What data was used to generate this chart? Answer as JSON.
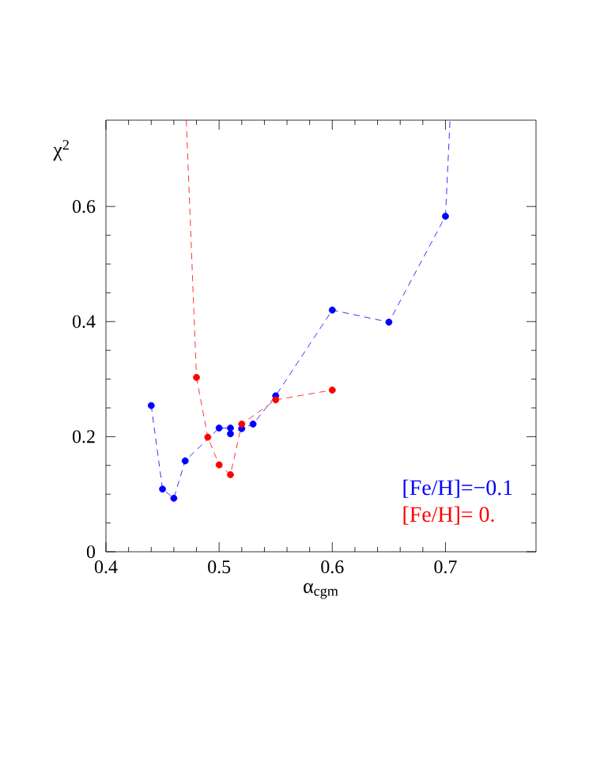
{
  "chart_data": {
    "type": "line",
    "xlabel": "α$_{cgm}$",
    "ylabel": "χ$^{2}$",
    "xlim": [
      0.4,
      0.78
    ],
    "ylim": [
      0,
      0.75
    ],
    "xticks": [
      0.4,
      0.5,
      0.6,
      0.7
    ],
    "yticks": [
      0,
      0.2,
      0.4,
      0.6
    ],
    "legend": "bottom right",
    "grid": false,
    "line_style": "dashed",
    "series": [
      {
        "name": "[Fe/H]=−0.1",
        "color": "#0000ff",
        "marker": "circle",
        "x": [
          0.44,
          0.45,
          0.46,
          0.47,
          0.5,
          0.51,
          0.51,
          0.52,
          0.53,
          0.55,
          0.6,
          0.65,
          0.7
        ],
        "values": [
          0.254,
          0.109,
          0.093,
          0.158,
          0.215,
          0.215,
          0.205,
          0.214,
          0.222,
          0.271,
          0.42,
          0.399,
          0.583
        ]
      },
      {
        "name": "[Fe/H]= 0.",
        "color": "#ff0000",
        "marker": "circle",
        "x": [
          0.48,
          0.49,
          0.5,
          0.51,
          0.52,
          0.55,
          0.6
        ],
        "values": [
          0.303,
          0.199,
          0.151,
          0.134,
          0.222,
          0.264,
          0.281
        ]
      },
      {
        "color": "#0000ff",
        "marker": "none",
        "x": [
          0.7,
          0.704
        ],
        "values": [
          0.583,
          0.75
        ]
      },
      {
        "color": "#ff0000",
        "marker": "none",
        "x": [
          0.471,
          0.48
        ],
        "values": [
          0.75,
          0.303
        ]
      }
    ]
  }
}
